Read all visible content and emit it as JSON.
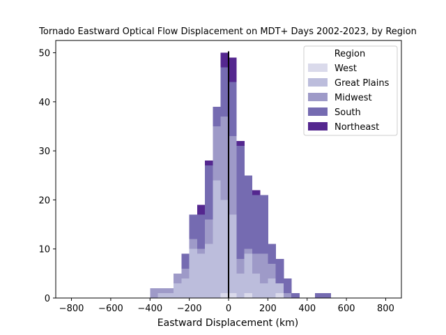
{
  "chart_data": {
    "type": "bar",
    "stacked": true,
    "title": "Tornado Eastward Optical Flow Displacement on MDT+ Days 2002-2023, by Region",
    "xlabel": "Eastward Displacement (km)",
    "ylabel": "",
    "xlim": [
      -880,
      880
    ],
    "ylim": [
      0,
      52.5
    ],
    "xticks": [
      -800,
      -600,
      -400,
      -200,
      0,
      200,
      400,
      600,
      800
    ],
    "yticks": [
      0,
      10,
      20,
      30,
      40,
      50
    ],
    "bin_width": 40,
    "bin_starts": [
      -400,
      -360,
      -320,
      -280,
      -240,
      -200,
      -160,
      -120,
      -80,
      -40,
      0,
      40,
      80,
      120,
      160,
      200,
      240,
      280,
      320,
      360,
      400,
      440,
      480
    ],
    "series": [
      {
        "name": "West",
        "color": "#dadaeb",
        "values": [
          0,
          0,
          0,
          0,
          0,
          0,
          0,
          0,
          0,
          1,
          1,
          0,
          1,
          0,
          0,
          0,
          1,
          0,
          0,
          0,
          0,
          0,
          0
        ]
      },
      {
        "name": "Great Plains",
        "color": "#bcbddc",
        "values": [
          0,
          1,
          1,
          3,
          4,
          10,
          9,
          11,
          24,
          19,
          16,
          5,
          8,
          5,
          3,
          4,
          2,
          0,
          0,
          0,
          0,
          0,
          0
        ]
      },
      {
        "name": "Midwest",
        "color": "#9e9ac8",
        "values": [
          2,
          1,
          1,
          2,
          2,
          2,
          1,
          5,
          11,
          17,
          16,
          3,
          1,
          4,
          6,
          3,
          0,
          1,
          0,
          0,
          0,
          0,
          0
        ]
      },
      {
        "name": "South",
        "color": "#756bb1",
        "values": [
          0,
          0,
          0,
          0,
          3,
          5,
          7,
          11,
          4,
          10,
          11,
          23,
          15,
          12,
          12,
          4,
          5,
          3,
          1,
          0,
          0,
          1,
          1
        ]
      },
      {
        "name": "Northeast",
        "color": "#54278f",
        "values": [
          0,
          0,
          0,
          0,
          0,
          0,
          2,
          1,
          0,
          3,
          5,
          1,
          0,
          1,
          0,
          0,
          0,
          0,
          0,
          0,
          0,
          0,
          0
        ]
      }
    ],
    "reference_line_x": 0,
    "legend": {
      "title": "Region",
      "position": "top-right"
    },
    "grid": false
  }
}
